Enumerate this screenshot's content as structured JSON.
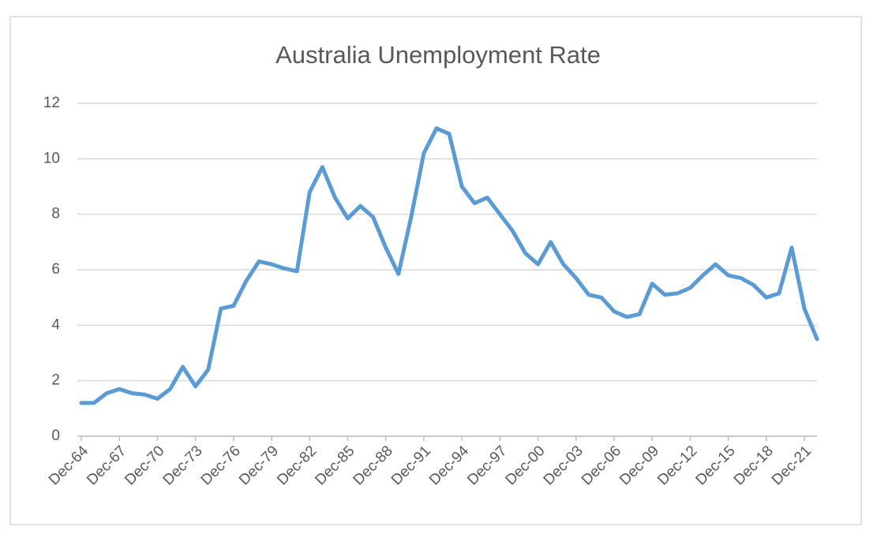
{
  "chart_data": {
    "type": "line",
    "title": "Australia Unemployment Rate",
    "categories": [
      "Dec-64",
      null,
      null,
      "Dec-67",
      null,
      null,
      "Dec-70",
      null,
      null,
      "Dec-73",
      null,
      null,
      "Dec-76",
      null,
      null,
      "Dec-79",
      null,
      null,
      "Dec-82",
      null,
      null,
      "Dec-85",
      null,
      null,
      "Dec-88",
      null,
      null,
      "Dec-91",
      null,
      null,
      "Dec-94",
      null,
      null,
      "Dec-97",
      null,
      null,
      "Dec-00",
      null,
      null,
      "Dec-03",
      null,
      null,
      "Dec-06",
      null,
      null,
      "Dec-09",
      null,
      null,
      "Dec-12",
      null,
      null,
      "Dec-15",
      null,
      null,
      "Dec-18",
      null,
      null,
      "Dec-21",
      null
    ],
    "values": [
      1.2,
      1.2,
      1.55,
      1.7,
      1.55,
      1.5,
      1.35,
      1.7,
      2.5,
      1.8,
      2.4,
      4.6,
      4.7,
      5.6,
      6.3,
      6.2,
      6.05,
      5.95,
      8.8,
      9.7,
      8.6,
      7.85,
      8.3,
      7.9,
      6.8,
      5.85,
      7.9,
      10.2,
      11.1,
      10.9,
      9.0,
      8.4,
      8.6,
      8.0,
      7.4,
      6.6,
      6.2,
      7.0,
      6.2,
      5.7,
      5.1,
      5.0,
      4.5,
      4.3,
      4.4,
      5.5,
      5.1,
      5.15,
      5.35,
      5.8,
      6.2,
      5.8,
      5.7,
      5.45,
      5.0,
      5.15,
      6.8,
      4.6,
      3.5
    ],
    "color": "#5b9bd5",
    "ylim": [
      0,
      12
    ],
    "yticks": [
      0,
      2,
      4,
      6,
      8,
      10,
      12
    ],
    "grid": true
  }
}
